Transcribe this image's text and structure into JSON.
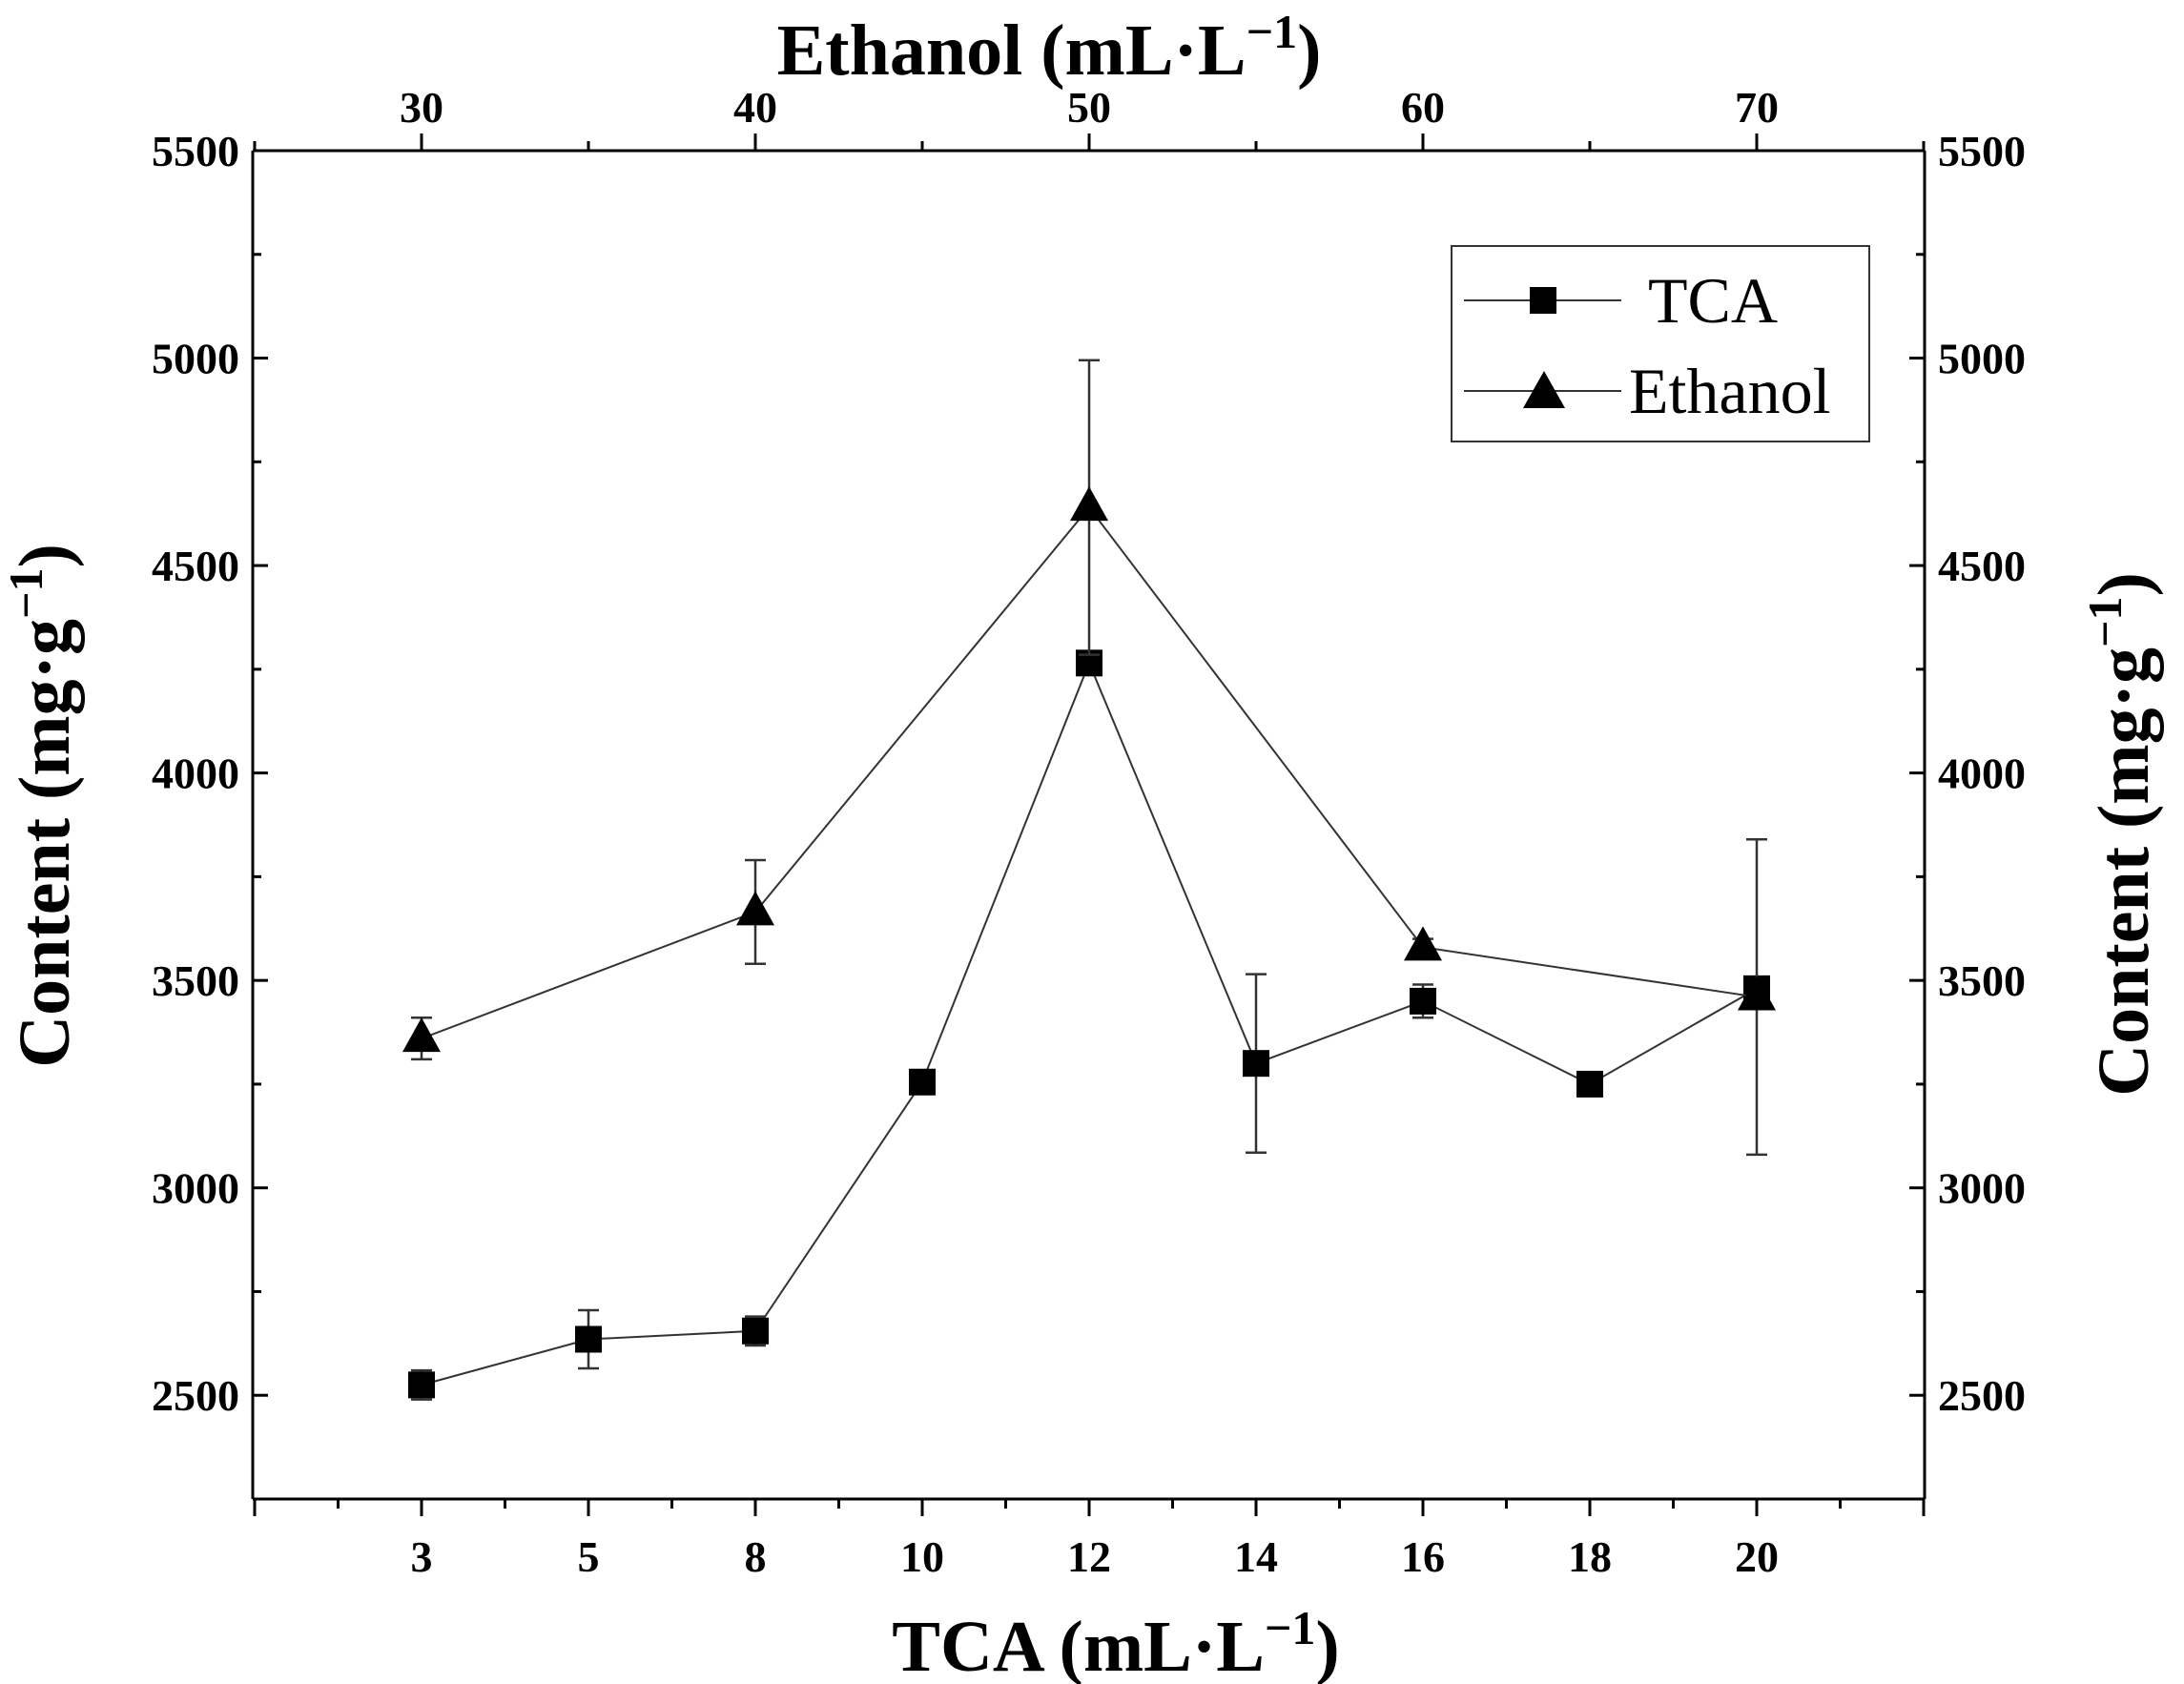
{
  "chart_data": {
    "type": "line",
    "title": "",
    "bottom_axis": {
      "label_main": "TCA (mL·L",
      "label_sup": "−1",
      "label_end": ")",
      "categories": [
        "3",
        "5",
        "8",
        "10",
        "12",
        "14",
        "16",
        "18",
        "20"
      ]
    },
    "top_axis": {
      "label_main": "Ethanol (mL·L",
      "label_sup": "−1",
      "label_end": ")",
      "ticks": [
        "30",
        "40",
        "50",
        "60",
        "70"
      ]
    },
    "left_axis": {
      "label_main": "Content (mg·g",
      "label_sup": "−1",
      "label_end": ")"
    },
    "right_axis": {
      "label_main": "Content (mg·g",
      "label_sup": "−1",
      "label_end": ")"
    },
    "y_ticks": [
      2500,
      3000,
      3500,
      4000,
      4500,
      5000,
      5500
    ],
    "ylim": [
      2250,
      5500
    ],
    "series": [
      {
        "name": "TCA",
        "marker": "square",
        "x_axis": "bottom",
        "x": [
          3,
          5,
          8,
          10,
          12,
          14,
          16,
          18,
          20
        ],
        "values": [
          2525,
          2635,
          2655,
          3255,
          4265,
          3300,
          3450,
          3250,
          3480
        ],
        "errors": [
          35,
          70,
          35,
          20,
          20,
          215,
          40,
          20,
          20
        ]
      },
      {
        "name": "Ethanol",
        "marker": "triangle",
        "x_axis": "top",
        "x": [
          30,
          40,
          50,
          60,
          70
        ],
        "values": [
          3360,
          3665,
          4640,
          3580,
          3460
        ],
        "errors": [
          50,
          125,
          355,
          20,
          380
        ]
      }
    ],
    "legend": {
      "position": "top-right",
      "entries": [
        "TCA",
        "Ethanol"
      ]
    }
  }
}
